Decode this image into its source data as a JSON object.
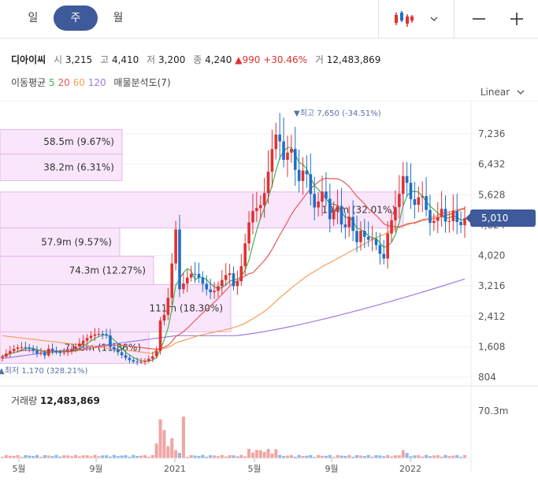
{
  "tabs": [
    "일",
    "주",
    "월"
  ],
  "active_tab": 1,
  "header": {
    "name": "디아이씨",
    "open_label": "시",
    "open": "3,215",
    "high_label": "고",
    "high": "4,410",
    "low_label": "저",
    "low": "3,200",
    "close_label": "종",
    "close": "4,240",
    "change": "▲990",
    "change_pct": "+30.46%",
    "volume_label": "거",
    "volume": "12,483,869"
  },
  "ma": {
    "label": "이동평균",
    "periods": [
      "5",
      "20",
      "60",
      "120"
    ],
    "colors": [
      "#3fb44f",
      "#e8585a",
      "#f5a05a",
      "#a07ae0"
    ],
    "vp_label": "매물분석도(7)"
  },
  "scale_mode": "Linear",
  "current_price": "5,010",
  "max_marker": "▼최고 7,650 (-34.51%)",
  "min_marker": "▲최저 1,170 (328.21%)",
  "y_ticks": [
    "7,236",
    "6,432",
    "5,628",
    "4,824",
    "4,020",
    "3,216",
    "2,412",
    "1,608",
    "804"
  ],
  "volume_profile": [
    {
      "label": "58.5m (9.67%)",
      "low": 6700,
      "high": 7350
    },
    {
      "label": "38.2m (6.31%)",
      "low": 6000,
      "high": 6700
    },
    {
      "label": "194m (32.01%)",
      "low": 4750,
      "high": 5700
    },
    {
      "label": "57.9m (9.57%)",
      "low": 4000,
      "high": 4750
    },
    {
      "label": "74.3m (12.27%)",
      "low": 3250,
      "high": 4000
    },
    {
      "label": "111m (18.30%)",
      "low": 2000,
      "high": 3250
    },
    {
      "label": "71.8m (11.86%)",
      "low": 1170,
      "high": 2000
    }
  ],
  "volume_title": "거래량",
  "volume_value": "12,483,869",
  "volume_max_tick": "70.3m",
  "x_ticks": [
    "5월",
    "9월",
    "2021",
    "5월",
    "9월",
    "2022"
  ],
  "colors": {
    "up": "#e03131",
    "down": "#1e6fc8",
    "accent": "#3f5a9a",
    "vp_fill": "#f9e6fb",
    "vp_stroke": "#e6b5ee"
  }
}
